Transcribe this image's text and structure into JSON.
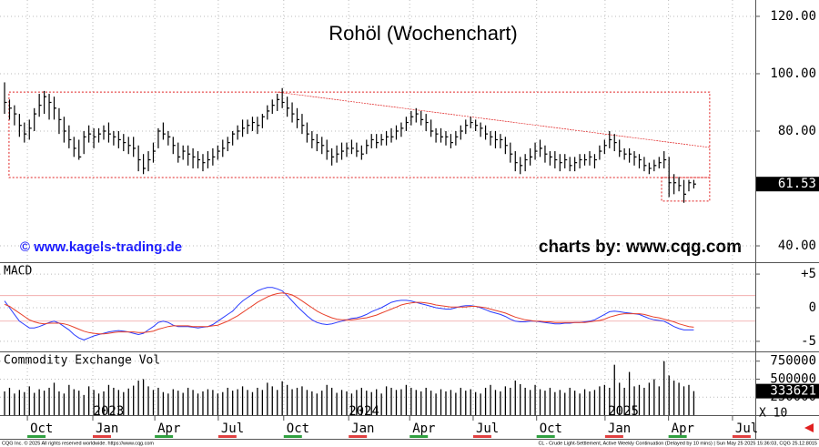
{
  "chart_data": [
    {
      "type": "ohlc",
      "title": "Rohöl (Wochenchart)",
      "left_note": "© www.kagels-trading.de",
      "right_note": "charts by: www.cqg.com",
      "color": "#000000",
      "ylim": [
        34.3,
        125.7
      ],
      "xlim": [
        -0.92,
        151.4
      ],
      "yticks": [
        {
          "value": 120,
          "label": "120.00"
        },
        {
          "value": 100,
          "label": "100.00"
        },
        {
          "value": 80,
          "label": "80.00"
        },
        {
          "value": 40,
          "label": "40.00"
        }
      ],
      "xticks": [
        {
          "value": 4.6,
          "label": "Oct"
        },
        {
          "value": 17.8,
          "label": "Jan"
        },
        {
          "value": 30.3,
          "label": "Apr"
        },
        {
          "value": 43.1,
          "label": "Jul"
        },
        {
          "value": 56.3,
          "label": "Oct"
        },
        {
          "value": 69.4,
          "label": "Jan"
        },
        {
          "value": 81.7,
          "label": "Apr"
        },
        {
          "value": 94.5,
          "label": "Jul"
        },
        {
          "value": 107.3,
          "label": "Oct"
        },
        {
          "value": 121.1,
          "label": "Jan"
        },
        {
          "value": 133.9,
          "label": "Apr"
        },
        {
          "value": 146.8,
          "label": "Jul"
        }
      ],
      "year_labels": [
        {
          "value": 21,
          "label": "2023"
        },
        {
          "value": 72.5,
          "label": "2024"
        },
        {
          "value": 124.8,
          "label": "2025"
        }
      ],
      "shapes": [
        {
          "type": "rect",
          "x0": 0.9,
          "x1": 142.2,
          "y0": 63.8,
          "y1": 93.6
        },
        {
          "type": "rect",
          "x0": 132.5,
          "x1": 142.2,
          "y0": 55.6,
          "y1": 63.8
        },
        {
          "type": "line",
          "x0": 55,
          "x1": 142.2,
          "y0": 93.6,
          "y1": 74.3
        }
      ],
      "shape_color": "#e02020",
      "close": [
        90,
        88,
        86,
        82,
        79,
        81,
        86,
        89,
        92,
        90,
        88,
        84,
        80,
        77,
        74,
        71,
        78,
        79,
        78,
        79,
        80,
        79,
        78,
        77,
        76,
        75,
        74,
        70,
        67,
        70,
        73,
        80,
        79,
        78,
        75,
        71,
        73,
        72,
        71,
        70,
        69,
        70,
        71,
        73,
        74,
        76,
        79,
        80,
        81,
        82,
        83,
        82,
        85,
        87,
        89,
        91,
        90,
        88,
        86,
        84,
        82,
        79,
        77,
        76,
        75,
        73,
        71,
        72,
        73,
        74,
        74,
        73,
        72,
        75,
        77,
        76,
        77,
        78,
        78,
        80,
        81,
        83,
        85,
        86,
        84,
        83,
        80,
        79,
        78,
        78,
        76,
        78,
        80,
        82,
        83,
        82,
        81,
        79,
        78,
        77,
        77,
        75,
        72,
        69,
        68,
        70,
        71,
        73,
        74,
        72,
        71,
        70,
        69,
        70,
        68,
        69,
        70,
        70,
        71,
        70,
        73,
        75,
        77,
        76,
        73,
        72,
        72,
        71,
        70,
        68,
        67,
        68,
        69,
        70,
        62,
        62,
        61,
        58,
        62,
        61.53
      ],
      "high": [
        97,
        91,
        89,
        86,
        83,
        84,
        88,
        93,
        94,
        93,
        92,
        88,
        85,
        82,
        78,
        77,
        80,
        82,
        81,
        81,
        82,
        83,
        80,
        80,
        79,
        78,
        78,
        75,
        72,
        73,
        76,
        81,
        83,
        80,
        78,
        76,
        75,
        75,
        74,
        73,
        72,
        73,
        74,
        75,
        77,
        78,
        80,
        82,
        84,
        84,
        85,
        85,
        86,
        89,
        91,
        93,
        95,
        92,
        90,
        88,
        86,
        83,
        80,
        79,
        78,
        77,
        74,
        75,
        76,
        76,
        77,
        76,
        75,
        77,
        79,
        79,
        79,
        80,
        81,
        82,
        83,
        85,
        87,
        88,
        87,
        86,
        84,
        81,
        81,
        80,
        79,
        80,
        82,
        84,
        85,
        84,
        83,
        82,
        80,
        80,
        79,
        78,
        76,
        73,
        71,
        72,
        74,
        76,
        77,
        75,
        73,
        73,
        72,
        72,
        71,
        71,
        72,
        72,
        73,
        72,
        75,
        77,
        80,
        79,
        77,
        74,
        74,
        73,
        72,
        71,
        69,
        70,
        71,
        73,
        71,
        65,
        64,
        63,
        63,
        63
      ],
      "low": [
        86,
        84,
        82,
        78,
        76,
        77,
        80,
        85,
        86,
        84,
        84,
        79,
        76,
        74,
        71,
        70,
        72,
        76,
        74,
        76,
        77,
        76,
        75,
        74,
        73,
        72,
        71,
        66,
        65,
        66,
        69,
        74,
        77,
        75,
        72,
        69,
        70,
        68,
        67,
        67,
        66,
        67,
        68,
        70,
        71,
        73,
        75,
        77,
        78,
        79,
        80,
        79,
        81,
        84,
        86,
        87,
        88,
        85,
        83,
        81,
        79,
        76,
        74,
        73,
        72,
        70,
        68,
        69,
        70,
        71,
        72,
        71,
        70,
        72,
        74,
        74,
        75,
        75,
        76,
        77,
        78,
        80,
        82,
        83,
        82,
        80,
        78,
        76,
        76,
        75,
        74,
        75,
        77,
        79,
        81,
        80,
        78,
        77,
        75,
        74,
        74,
        72,
        69,
        66,
        65,
        66,
        68,
        70,
        71,
        69,
        68,
        67,
        66,
        67,
        66,
        66,
        67,
        68,
        68,
        67,
        70,
        72,
        74,
        73,
        71,
        70,
        69,
        68,
        67,
        66,
        65,
        66,
        67,
        67,
        57,
        58,
        59,
        55,
        59,
        60
      ]
    },
    {
      "type": "line",
      "title": "MACD",
      "ylim": [
        -6.5,
        6.5
      ],
      "yticks": [
        {
          "value": 5,
          "label": "+5"
        },
        0,
        -5
      ],
      "levels": [
        1.8,
        -2
      ],
      "level_color": "#f0a0a0",
      "series": [
        {
          "color": "#2a3cff",
          "values": [
            1.0,
            0,
            -1,
            -2,
            -2.5,
            -3,
            -3,
            -2.8,
            -2.5,
            -2.2,
            -2,
            -2.3,
            -2.8,
            -3.3,
            -4,
            -4.5,
            -4.8,
            -4.5,
            -4.2,
            -4.0,
            -3.8,
            -3.6,
            -3.5,
            -3.4,
            -3.5,
            -3.6,
            -3.8,
            -4.0,
            -3.8,
            -3.3,
            -2.8,
            -2.2,
            -2.0,
            -2.2,
            -2.6,
            -2.8,
            -2.8,
            -2.8,
            -2.9,
            -3.0,
            -2.9,
            -2.8,
            -2.5,
            -2.0,
            -1.5,
            -1.0,
            -0.5,
            0.3,
            1.0,
            1.5,
            2.0,
            2.5,
            2.8,
            3.0,
            3.0,
            2.8,
            2.5,
            1.8,
            1.0,
            0.2,
            -0.5,
            -1.2,
            -1.8,
            -2.2,
            -2.4,
            -2.5,
            -2.4,
            -2.2,
            -2.0,
            -1.8,
            -1.6,
            -1.5,
            -1.3,
            -1.0,
            -0.6,
            -0.3,
            0,
            0.4,
            0.8,
            1.0,
            1.1,
            1.1,
            1.0,
            0.8,
            0.6,
            0.4,
            0.2,
            0,
            -0.1,
            -0.2,
            -0.2,
            0,
            0.2,
            0.3,
            0.3,
            0.2,
            0,
            -0.3,
            -0.6,
            -0.8,
            -1.0,
            -1.3,
            -1.7,
            -2.0,
            -2.1,
            -2.1,
            -2.0,
            -2.0,
            -2.1,
            -2.2,
            -2.3,
            -2.4,
            -2.4,
            -2.3,
            -2.3,
            -2.2,
            -2.2,
            -2.1,
            -2.0,
            -1.8,
            -1.4,
            -1.0,
            -0.6,
            -0.5,
            -0.6,
            -0.7,
            -0.8,
            -0.9,
            -1.0,
            -1.3,
            -1.6,
            -1.8,
            -1.9,
            -2.0,
            -2.4,
            -2.8,
            -3.1,
            -3.3,
            -3.3,
            -3.3
          ]
        },
        {
          "color": "#e8402a",
          "values": [
            0.5,
            0.2,
            -0.3,
            -0.8,
            -1.3,
            -1.8,
            -2.1,
            -2.3,
            -2.4,
            -2.3,
            -2.3,
            -2.3,
            -2.4,
            -2.6,
            -2.9,
            -3.2,
            -3.5,
            -3.7,
            -3.8,
            -3.9,
            -3.9,
            -3.8,
            -3.7,
            -3.6,
            -3.6,
            -3.6,
            -3.6,
            -3.7,
            -3.7,
            -3.6,
            -3.5,
            -3.2,
            -3.0,
            -2.8,
            -2.7,
            -2.7,
            -2.7,
            -2.7,
            -2.8,
            -2.8,
            -2.8,
            -2.8,
            -2.7,
            -2.6,
            -2.3,
            -2.0,
            -1.6,
            -1.2,
            -0.7,
            -0.2,
            0.3,
            0.8,
            1.2,
            1.6,
            1.9,
            2.1,
            2.2,
            2.1,
            1.9,
            1.5,
            1.0,
            0.5,
            0,
            -0.5,
            -0.9,
            -1.2,
            -1.5,
            -1.7,
            -1.8,
            -1.8,
            -1.8,
            -1.7,
            -1.6,
            -1.5,
            -1.3,
            -1.1,
            -0.8,
            -0.5,
            -0.2,
            0.1,
            0.4,
            0.6,
            0.7,
            0.8,
            0.8,
            0.7,
            0.6,
            0.4,
            0.3,
            0.2,
            0.1,
            0.1,
            0.1,
            0.1,
            0.2,
            0.2,
            0.1,
            0,
            -0.2,
            -0.4,
            -0.6,
            -0.8,
            -1.1,
            -1.4,
            -1.6,
            -1.8,
            -1.9,
            -2.0,
            -2.0,
            -2.1,
            -2.1,
            -2.2,
            -2.2,
            -2.2,
            -2.2,
            -2.2,
            -2.2,
            -2.2,
            -2.1,
            -2.0,
            -1.9,
            -1.7,
            -1.4,
            -1.2,
            -1.0,
            -0.9,
            -0.9,
            -0.9,
            -0.9,
            -1.0,
            -1.2,
            -1.4,
            -1.5,
            -1.7,
            -1.9,
            -2.1,
            -2.4,
            -2.6,
            -2.8,
            -2.9
          ]
        }
      ]
    },
    {
      "type": "bar",
      "title": "Commodity Exchange Vol",
      "unit_note": "X 10",
      "color": "#000000",
      "ylim": [
        0,
        860000
      ],
      "yticks": [
        750000,
        500000,
        250000
      ],
      "values": [
        330000,
        380000,
        300000,
        350000,
        320000,
        400000,
        310000,
        360000,
        340000,
        380000,
        450000,
        330000,
        300000,
        420000,
        360000,
        340000,
        280000,
        400000,
        350000,
        300000,
        330000,
        420000,
        380000,
        350000,
        320000,
        370000,
        410000,
        480000,
        500000,
        400000,
        350000,
        380000,
        320000,
        300000,
        360000,
        340000,
        310000,
        380000,
        350000,
        300000,
        330000,
        360000,
        350000,
        300000,
        320000,
        380000,
        340000,
        360000,
        400000,
        350000,
        320000,
        380000,
        350000,
        450000,
        400000,
        350000,
        470000,
        420000,
        360000,
        380000,
        400000,
        350000,
        330000,
        300000,
        340000,
        420000,
        380000,
        310000,
        350000,
        330000,
        300000,
        350000,
        380000,
        340000,
        320000,
        360000,
        300000,
        400000,
        380000,
        350000,
        360000,
        420000,
        380000,
        350000,
        330000,
        380000,
        340000,
        300000,
        360000,
        330000,
        350000,
        310000,
        380000,
        340000,
        360000,
        320000,
        300000,
        380000,
        420000,
        350000,
        330000,
        400000,
        380000,
        480000,
        430000,
        380000,
        350000,
        420000,
        360000,
        340000,
        380000,
        320000,
        350000,
        310000,
        380000,
        340000,
        300000,
        360000,
        330000,
        350000,
        400000,
        420000,
        380000,
        700000,
        450000,
        380000,
        600000,
        400000,
        420000,
        380000,
        450000,
        500000,
        400000,
        750000,
        550000,
        480000,
        450000,
        400000,
        420000,
        333621
      ]
    }
  ],
  "footer": {
    "left": "CQG Inc. © 2025 All rights reserved worldwide. https://www.cqg.com",
    "right": "CL - Crude Light-Settlement, Active Weekly Continuation (Delayed by 10 mins) | Sun May 25 2025 15:36:03, CQG 25.12.8015"
  }
}
